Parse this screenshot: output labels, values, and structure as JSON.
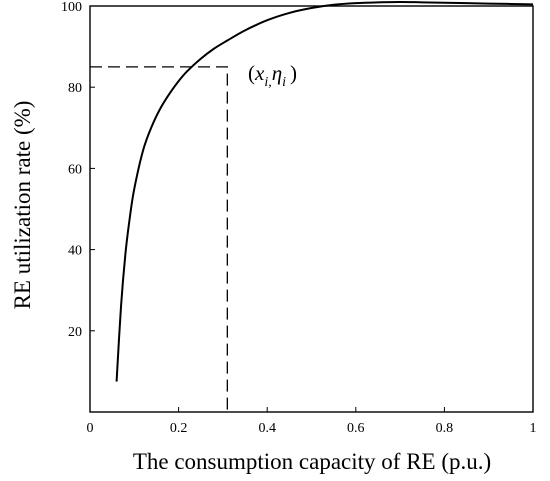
{
  "chart_data": {
    "type": "line",
    "title": "",
    "xlabel": "The consumption capacity of RE (p.u.)",
    "ylabel": "RE utilization rate (%)",
    "xlim": [
      0,
      1
    ],
    "ylim": [
      0,
      100
    ],
    "x_ticks": [
      "0",
      "0.2",
      "0.4",
      "0.6",
      "0.8",
      "1"
    ],
    "y_ticks": [
      "20",
      "40",
      "60",
      "80",
      "100"
    ],
    "grid": false,
    "series": [
      {
        "x": [
          0.06,
          0.07,
          0.08,
          0.09,
          0.1,
          0.12,
          0.14,
          0.16,
          0.18,
          0.2,
          0.22,
          0.25,
          0.28,
          0.31,
          0.35,
          0.4,
          0.45,
          0.5,
          0.55,
          0.6,
          0.65,
          0.7,
          0.75,
          0.8,
          0.85,
          0.9,
          0.95,
          1.0
        ],
        "y": [
          7.5,
          26,
          39,
          48,
          55,
          64.5,
          70.5,
          75,
          78.5,
          81.5,
          84,
          87,
          89.5,
          91.5,
          94,
          96.5,
          98.3,
          99.5,
          100.3,
          100.7,
          100.9,
          101,
          100.9,
          100.8,
          100.7,
          100.6,
          100.5,
          100.4
        ]
      }
    ],
    "annotations": [
      {
        "label": "(x_i, η_i)",
        "x": 0.31,
        "y": 85,
        "style": "dashed projection lines to both axes"
      }
    ]
  },
  "annotation_text": {
    "open": "(",
    "x": "x",
    "x_sub": "i,",
    "eta": "η",
    "eta_sub": "i",
    "close": ")"
  }
}
